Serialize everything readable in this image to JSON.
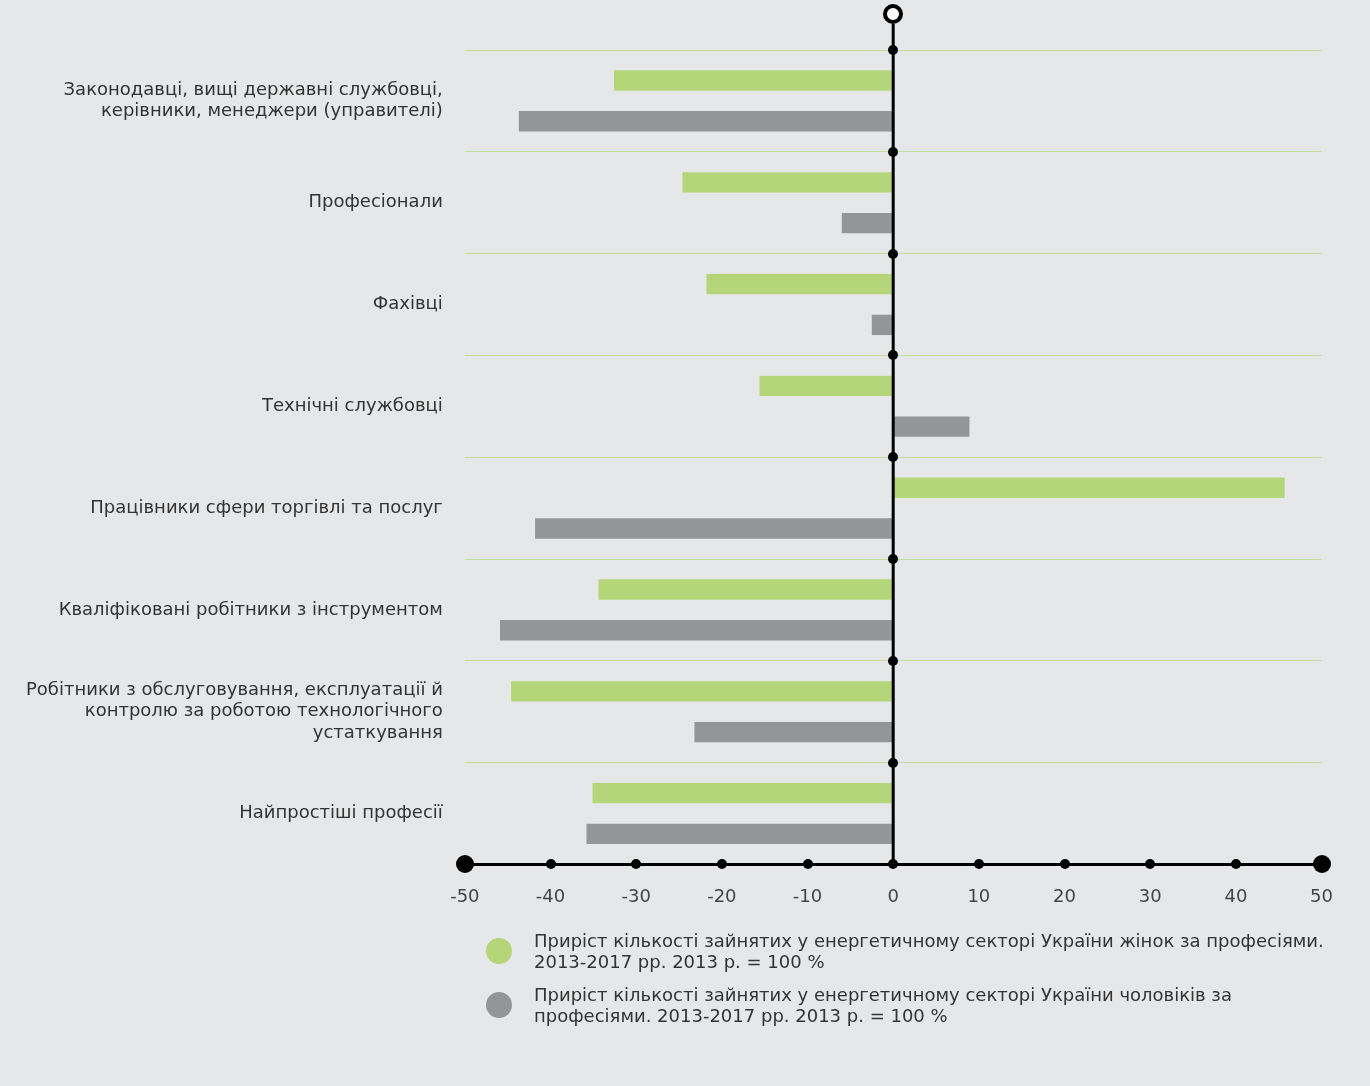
{
  "chart_data": {
    "type": "bar",
    "orientation": "horizontal",
    "categories": [
      "Законодавці, вищі державні службовці, керівники, менеджери (управителі)",
      "Професіонали",
      "Фахівці",
      "Технічні службовці",
      "Працівники сфери торгівлі та послуг",
      "Кваліфіковані робітники з інструментом",
      "Робітники з обслуговування, експлуатації й контролю за роботою технологічного устаткування",
      "Найпростіші професії"
    ],
    "series": [
      {
        "name": "Приріст кількості зайнятих у енергетичному секторі України жінок за професіями. 2013-2017 рр. 2013 р. = 100 %",
        "color": "#b5d678",
        "values": [
          -32.6,
          -24.6,
          -21.8,
          -15.6,
          45.7,
          -34.4,
          -44.6,
          -35.1
        ]
      },
      {
        "name": "Приріст кількості зайнятих у енергетичному секторі України чоловіків за професіями. 2013-2017 рр. 2013 р. = 100 %",
        "color": "#939598",
        "values": [
          -43.7,
          -6.0,
          -2.5,
          8.9,
          -41.8,
          -45.9,
          -23.2,
          -35.8
        ]
      }
    ],
    "xlim": [
      -50,
      50
    ],
    "xticks": [
      -50,
      -40,
      -30,
      -20,
      -10,
      0,
      10,
      20,
      30,
      40,
      50
    ],
    "grid": "y",
    "legend": "bottom"
  }
}
